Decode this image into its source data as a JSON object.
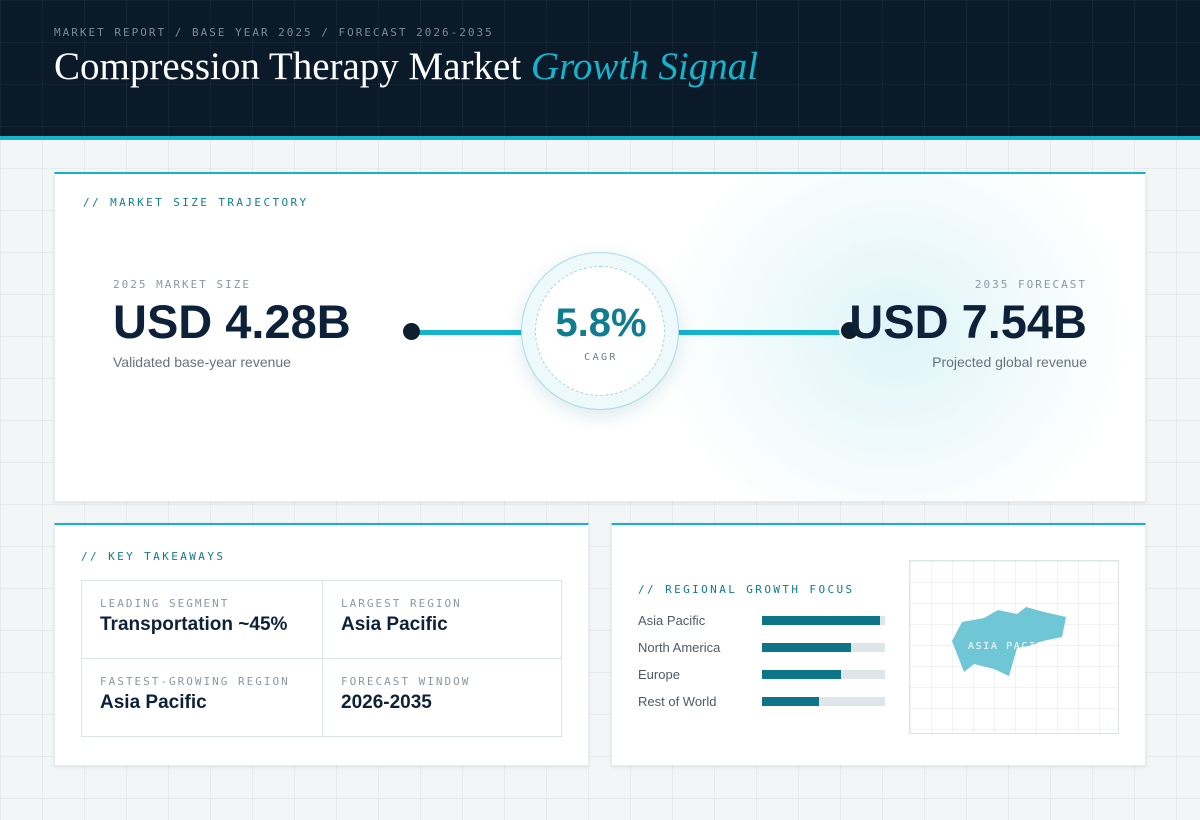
{
  "header": {
    "breadcrumb": "MARKET REPORT / BASE YEAR 2025 / FORECAST 2026-2035",
    "title_main": "Compression Therapy Market",
    "title_accent": "Growth Signal"
  },
  "trajectory": {
    "section_label": "// MARKET SIZE TRAJECTORY",
    "start": {
      "caption": "2025 MARKET SIZE",
      "value": "USD 4.28B",
      "sub": "Validated base-year revenue"
    },
    "cagr": {
      "value": "5.8%",
      "label": "CAGR"
    },
    "end": {
      "caption": "2035 FORECAST",
      "value": "USD 7.54B",
      "sub": "Projected global revenue"
    }
  },
  "takeaways": {
    "section_label": "// KEY TAKEAWAYS",
    "items": [
      {
        "caption": "LEADING SEGMENT",
        "value": "Transportation ~45%"
      },
      {
        "caption": "LARGEST REGION",
        "value": "Asia Pacific"
      },
      {
        "caption": "FASTEST-GROWING REGION",
        "value": "Asia Pacific"
      },
      {
        "caption": "FORECAST WINDOW",
        "value": "2026-2035"
      }
    ]
  },
  "regional": {
    "section_label": "// REGIONAL GROWTH FOCUS",
    "regions": [
      {
        "name": "Asia Pacific",
        "level": 0.96
      },
      {
        "name": "North America",
        "level": 0.72
      },
      {
        "name": "Europe",
        "level": 0.64
      },
      {
        "name": "Rest of World",
        "level": 0.46
      }
    ],
    "map_label": "ASIA PACIFIC"
  },
  "colors": {
    "accent": "#14b4cc",
    "accent_dark": "#0e7588",
    "header_bg": "#0a1a28",
    "text_dark": "#0d2238"
  }
}
